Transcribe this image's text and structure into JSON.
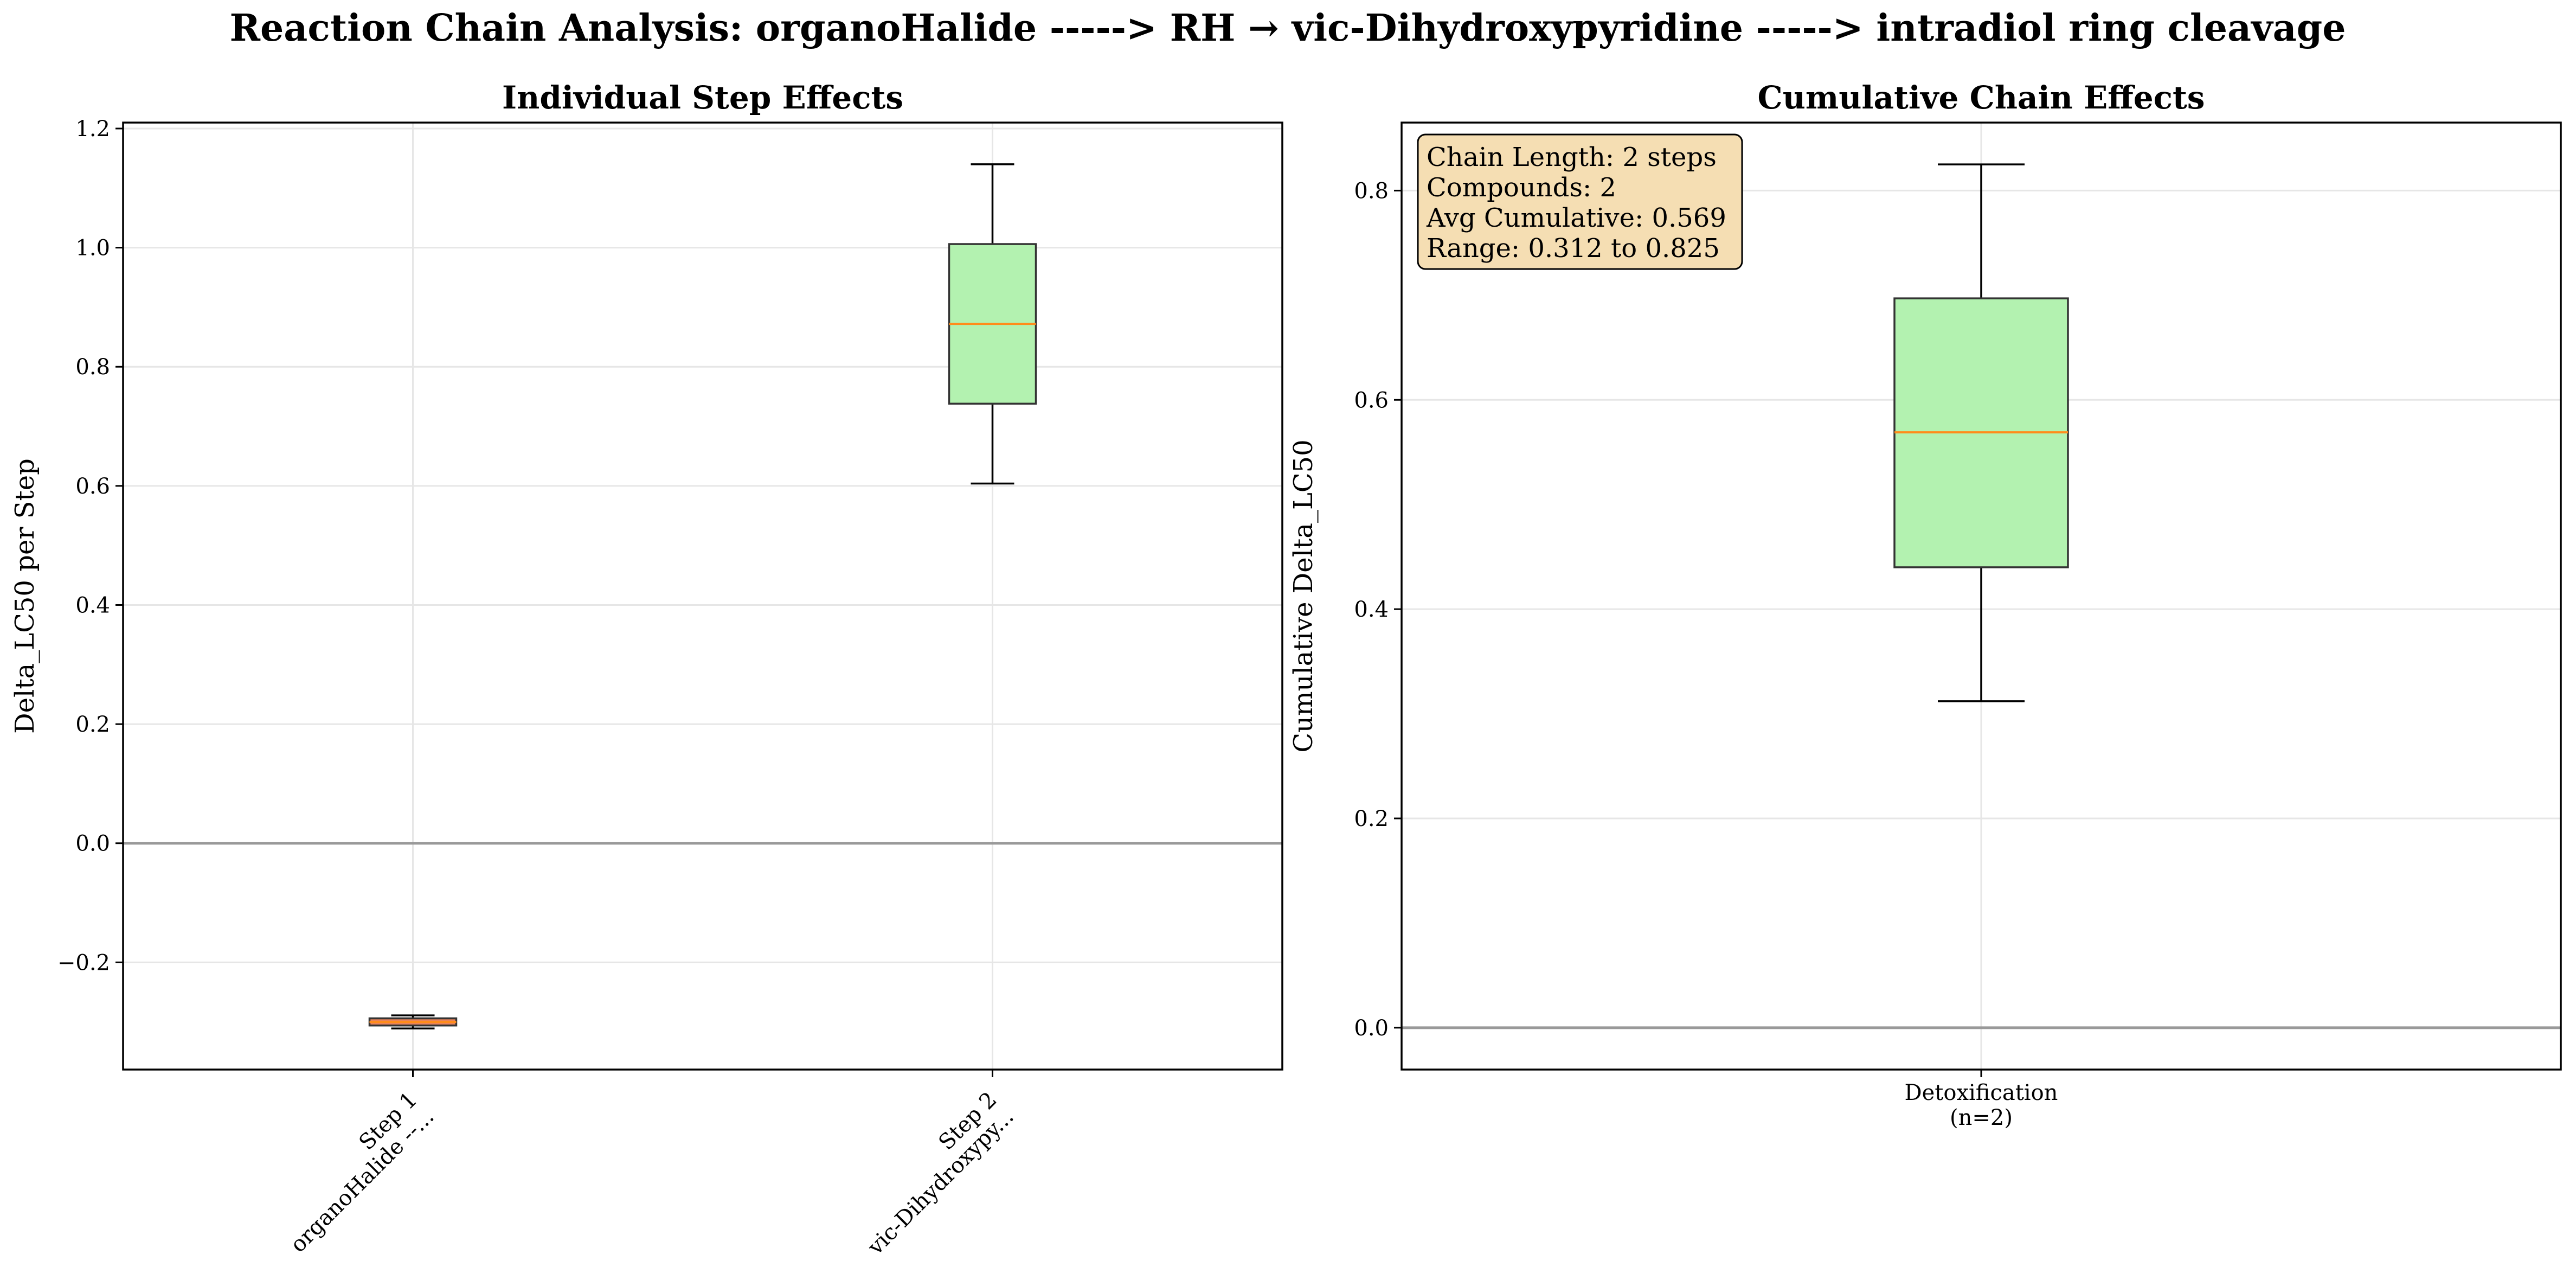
{
  "figure": {
    "suptitle": "Reaction Chain Analysis: organoHalide -----> RH → vic-Dihydroxypyridine -----> intradiol ring cleavage"
  },
  "chart_data": [
    {
      "type": "box",
      "title": "Individual Step Effects",
      "xlabel": "",
      "ylabel": "Delta_LC50 per Step",
      "ylim": [
        -0.38,
        1.21
      ],
      "yticks": [
        -0.2,
        0.0,
        0.2,
        0.4,
        0.6,
        0.8,
        1.0,
        1.2
      ],
      "ytick_labels": [
        "−0.2",
        "0.0",
        "0.2",
        "0.4",
        "0.6",
        "0.8",
        "1.0",
        "1.2"
      ],
      "grid": true,
      "reference_line_y": 0,
      "categories": [
        "Step 1\norganoHalide --...",
        "Step 2\nvic-Dihydroxypy..."
      ],
      "category_label_rotation": 45,
      "boxes": [
        {
          "category": "Step 1\norganoHalide --...",
          "whisker_low": -0.311,
          "q1": -0.306,
          "median": -0.3,
          "q3": -0.294,
          "whisker_high": -0.289,
          "color": "#e8845c"
        },
        {
          "category": "Step 2\nvic-Dihydroxypy...",
          "whisker_low": 0.604,
          "q1": 0.738,
          "median": 0.872,
          "q3": 1.006,
          "whisker_high": 1.14,
          "color": "#b3f2b0"
        }
      ],
      "median_color": "#ff8c1a"
    },
    {
      "type": "box",
      "title": "Cumulative Chain Effects",
      "xlabel": "",
      "ylabel": "Cumulative Delta_LC50",
      "ylim": [
        -0.04,
        0.865
      ],
      "yticks": [
        0.0,
        0.2,
        0.4,
        0.6,
        0.8
      ],
      "ytick_labels": [
        "0.0",
        "0.2",
        "0.4",
        "0.6",
        "0.8"
      ],
      "grid": true,
      "reference_line_y": 0,
      "categories": [
        "Detoxification\n(n=2)"
      ],
      "boxes": [
        {
          "category": "Detoxification\n(n=2)",
          "whisker_low": 0.312,
          "q1": 0.44,
          "median": 0.569,
          "q3": 0.697,
          "whisker_high": 0.825,
          "color": "#b3f2b0"
        }
      ],
      "median_color": "#ff8c1a",
      "annotation": [
        "Chain Length: 2 steps",
        "Compounds: 2",
        "Avg Cumulative: 0.569",
        "Range: 0.312 to 0.825"
      ],
      "annotation_placement": "top-left",
      "annotation_color": "#f5deb3"
    }
  ]
}
